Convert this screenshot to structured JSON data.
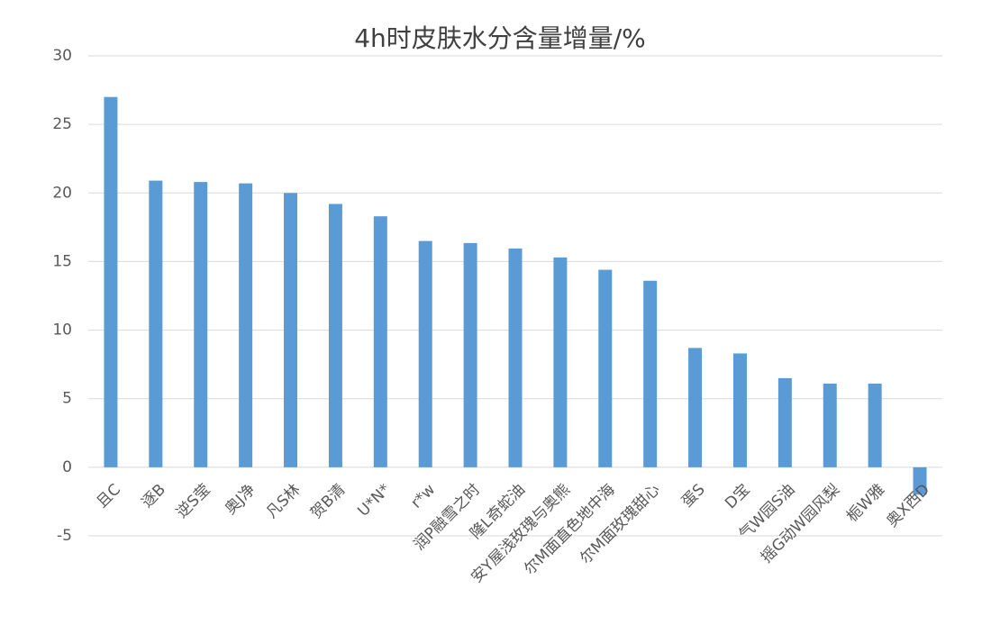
{
  "chart_data": {
    "type": "bar",
    "title": "4h时皮肤水分含量增量/%",
    "categories": [
      "且C",
      "逐B",
      "逆S莹",
      "奥J净",
      "凡S林",
      "贺B清",
      "U*N*",
      "r*w",
      "润P融雪之时",
      "隆L奇蛇油",
      "安Y屋浅玫瑰与奥熊",
      "尔M面直色地中海",
      "尔M面玫瑰甜心",
      "蛋S",
      "D宝",
      "气W园S油",
      "摇G动W园风梨",
      "栀W雅",
      "奥X西D"
    ],
    "values": [
      27.0,
      20.9,
      20.8,
      20.7,
      20.0,
      19.2,
      18.3,
      16.5,
      16.35,
      15.95,
      15.3,
      14.4,
      13.6,
      8.7,
      8.3,
      6.5,
      6.1,
      6.1,
      -2.0
    ],
    "color": "#5b9bd5",
    "ylim": [
      -5,
      30
    ],
    "yticks": [
      -5,
      0,
      5,
      10,
      15,
      20,
      25,
      30
    ],
    "grid": true
  }
}
